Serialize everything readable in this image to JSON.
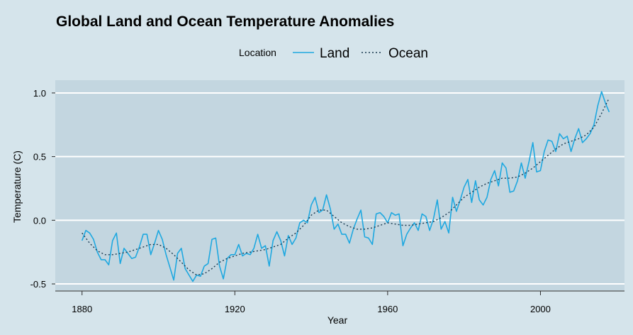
{
  "chart_data": {
    "type": "line",
    "title": "Global Land and Ocean Temperature Anomalies",
    "xlabel": "Year",
    "ylabel": "Temperature (C)",
    "xlim": [
      1873,
      2022
    ],
    "ylim": [
      -0.55,
      1.1
    ],
    "xticks": [
      1880,
      1920,
      1960,
      2000
    ],
    "yticks": [
      -0.5,
      0.0,
      0.5,
      1.0
    ],
    "ytick_labels": [
      "-0.5",
      "0.0",
      "0.5",
      "1.0"
    ],
    "grid": true,
    "legend": {
      "title": "Location",
      "position": "top"
    },
    "series": [
      {
        "name": "Land",
        "color": "#1ea8e0",
        "style": "solid",
        "x": [
          1880,
          1881,
          1882,
          1883,
          1884,
          1885,
          1886,
          1887,
          1888,
          1889,
          1890,
          1891,
          1892,
          1893,
          1894,
          1895,
          1896,
          1897,
          1898,
          1899,
          1900,
          1901,
          1902,
          1903,
          1904,
          1905,
          1906,
          1907,
          1908,
          1909,
          1910,
          1911,
          1912,
          1913,
          1914,
          1915,
          1916,
          1917,
          1918,
          1919,
          1920,
          1921,
          1922,
          1923,
          1924,
          1925,
          1926,
          1927,
          1928,
          1929,
          1930,
          1931,
          1932,
          1933,
          1934,
          1935,
          1936,
          1937,
          1938,
          1939,
          1940,
          1941,
          1942,
          1943,
          1944,
          1945,
          1946,
          1947,
          1948,
          1949,
          1950,
          1951,
          1952,
          1953,
          1954,
          1955,
          1956,
          1957,
          1958,
          1959,
          1960,
          1961,
          1962,
          1963,
          1964,
          1965,
          1966,
          1967,
          1968,
          1969,
          1970,
          1971,
          1972,
          1973,
          1974,
          1975,
          1976,
          1977,
          1978,
          1979,
          1980,
          1981,
          1982,
          1983,
          1984,
          1985,
          1986,
          1987,
          1988,
          1989,
          1990,
          1991,
          1992,
          1993,
          1994,
          1995,
          1996,
          1997,
          1998,
          1999,
          2000,
          2001,
          2002,
          2003,
          2004,
          2005,
          2006,
          2007,
          2008,
          2009,
          2010,
          2011,
          2012,
          2013,
          2014,
          2015,
          2016,
          2017,
          2018
        ],
        "values": [
          -0.16,
          -0.08,
          -0.1,
          -0.15,
          -0.25,
          -0.31,
          -0.31,
          -0.35,
          -0.16,
          -0.1,
          -0.34,
          -0.22,
          -0.26,
          -0.3,
          -0.29,
          -0.21,
          -0.11,
          -0.11,
          -0.27,
          -0.18,
          -0.08,
          -0.15,
          -0.27,
          -0.37,
          -0.47,
          -0.26,
          -0.22,
          -0.38,
          -0.43,
          -0.48,
          -0.43,
          -0.44,
          -0.36,
          -0.34,
          -0.15,
          -0.14,
          -0.36,
          -0.46,
          -0.3,
          -0.27,
          -0.27,
          -0.19,
          -0.28,
          -0.26,
          -0.27,
          -0.22,
          -0.11,
          -0.22,
          -0.2,
          -0.36,
          -0.16,
          -0.09,
          -0.16,
          -0.28,
          -0.12,
          -0.19,
          -0.14,
          -0.02,
          -0.0,
          -0.02,
          0.12,
          0.18,
          0.06,
          0.08,
          0.2,
          0.09,
          -0.07,
          -0.03,
          -0.11,
          -0.11,
          -0.18,
          -0.07,
          0.01,
          0.08,
          -0.13,
          -0.14,
          -0.19,
          0.05,
          0.06,
          0.03,
          -0.02,
          0.06,
          0.04,
          0.05,
          -0.2,
          -0.11,
          -0.06,
          -0.02,
          -0.08,
          0.05,
          0.03,
          -0.08,
          0.01,
          0.16,
          -0.07,
          -0.01,
          -0.1,
          0.18,
          0.07,
          0.16,
          0.26,
          0.32,
          0.14,
          0.31,
          0.16,
          0.12,
          0.18,
          0.32,
          0.39,
          0.27,
          0.45,
          0.41,
          0.22,
          0.23,
          0.31,
          0.45,
          0.33,
          0.46,
          0.61,
          0.38,
          0.39,
          0.54,
          0.63,
          0.62,
          0.54,
          0.68,
          0.64,
          0.66,
          0.54,
          0.64,
          0.72,
          0.61,
          0.64,
          0.68,
          0.75,
          0.9,
          1.01,
          0.92,
          0.85
        ]
      },
      {
        "name": "Ocean",
        "color": "#1a3a50",
        "style": "dotted",
        "x": [
          1880,
          1882,
          1884,
          1886,
          1888,
          1890,
          1892,
          1894,
          1896,
          1898,
          1900,
          1902,
          1904,
          1906,
          1908,
          1910,
          1912,
          1914,
          1916,
          1918,
          1920,
          1922,
          1924,
          1926,
          1928,
          1930,
          1932,
          1934,
          1936,
          1938,
          1940,
          1942,
          1944,
          1946,
          1948,
          1950,
          1952,
          1954,
          1956,
          1958,
          1960,
          1962,
          1964,
          1966,
          1968,
          1970,
          1972,
          1974,
          1976,
          1978,
          1980,
          1982,
          1984,
          1986,
          1988,
          1990,
          1992,
          1994,
          1996,
          1998,
          2000,
          2002,
          2004,
          2006,
          2008,
          2010,
          2012,
          2014,
          2016,
          2018
        ],
        "values": [
          -0.1,
          -0.18,
          -0.24,
          -0.27,
          -0.27,
          -0.26,
          -0.25,
          -0.23,
          -0.21,
          -0.19,
          -0.19,
          -0.22,
          -0.27,
          -0.33,
          -0.39,
          -0.43,
          -0.42,
          -0.38,
          -0.33,
          -0.3,
          -0.28,
          -0.26,
          -0.25,
          -0.24,
          -0.23,
          -0.21,
          -0.19,
          -0.14,
          -0.1,
          -0.04,
          0.04,
          0.08,
          0.08,
          0.03,
          -0.02,
          -0.05,
          -0.07,
          -0.07,
          -0.06,
          -0.04,
          -0.02,
          -0.03,
          -0.04,
          -0.04,
          -0.03,
          -0.02,
          -0.01,
          0.02,
          0.06,
          0.12,
          0.18,
          0.22,
          0.26,
          0.29,
          0.31,
          0.33,
          0.33,
          0.34,
          0.37,
          0.41,
          0.46,
          0.51,
          0.56,
          0.6,
          0.62,
          0.64,
          0.67,
          0.73,
          0.84,
          0.96
        ]
      }
    ]
  }
}
